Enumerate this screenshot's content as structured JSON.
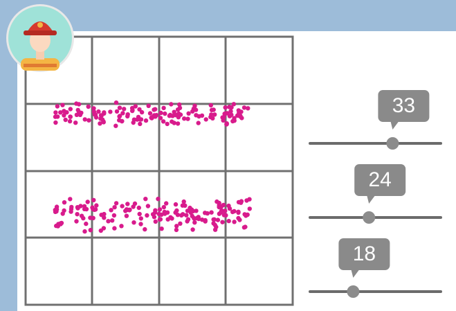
{
  "slider_range": [
    0,
    50
  ],
  "sliders": [
    {
      "value": 33
    },
    {
      "value": 24
    },
    {
      "value": 18
    }
  ]
}
